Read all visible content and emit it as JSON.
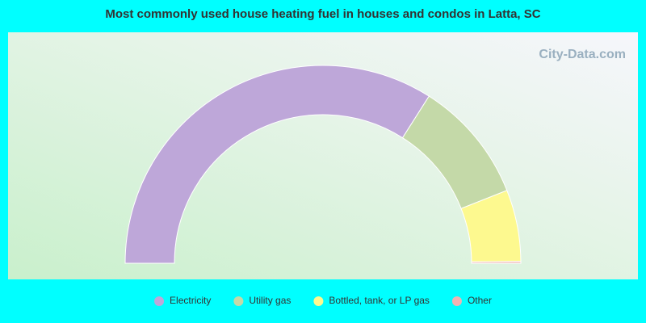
{
  "chart_data": {
    "type": "half-donut",
    "title": "Most commonly used house heating fuel in houses and condos in Latta, SC",
    "watermark": "City-Data.com",
    "categories": [
      "Electricity",
      "Utility gas",
      "Bottled, tank, or LP gas",
      "Other"
    ],
    "values": [
      68,
      20,
      11.7,
      0.3
    ],
    "colors": [
      "#bea7d9",
      "#c4d9a8",
      "#fdf98f",
      "#f0b3b3"
    ],
    "legend": "bottom"
  }
}
